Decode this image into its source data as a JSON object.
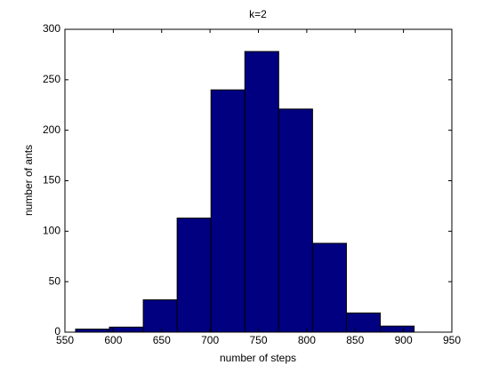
{
  "chart_data": {
    "type": "histogram",
    "title": "k=2",
    "xlabel": "number of steps",
    "ylabel": "number of ants",
    "bins": [
      561,
      596,
      631,
      666,
      701,
      736,
      771,
      806,
      841,
      876,
      911
    ],
    "values": [
      3,
      5,
      32,
      113,
      240,
      278,
      221,
      88,
      19,
      6
    ],
    "color": "#000080",
    "xlim": [
      550,
      950
    ],
    "xticks": [
      550,
      600,
      650,
      700,
      750,
      800,
      850,
      900,
      950
    ],
    "ylim": [
      0,
      300
    ],
    "yticks": [
      0,
      50,
      100,
      150,
      200,
      250,
      300
    ],
    "grid": false
  }
}
